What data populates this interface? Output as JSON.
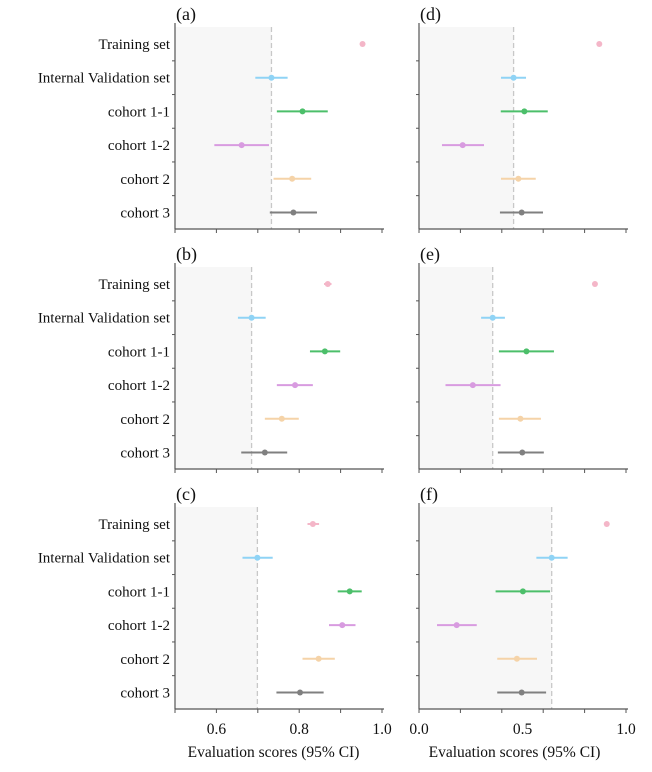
{
  "chart_data": {
    "type": "forest",
    "row_labels": [
      "Training set",
      "Internal Validation set",
      "cohort 1-1",
      "cohort 1-2",
      "cohort 2",
      "cohort 3"
    ],
    "row_colors": [
      "#f4b6c8",
      "#8fd3f5",
      "#4cbf6a",
      "#d89be0",
      "#f5d3a8",
      "#808080"
    ],
    "shade_color": "#f7f7f7",
    "reference_line_color": "#c8c8c8",
    "xlabel": "Evaluation scores (95% CI)",
    "panels": [
      {
        "id": "a",
        "title": "(a)",
        "column": "left",
        "xlim": [
          0.5,
          1.0
        ],
        "xticks": [
          0.5,
          0.6,
          0.7,
          0.8,
          0.9,
          1.0
        ],
        "xticklabels": [],
        "reference": 0.733,
        "points": [
          [
            0.953,
            0.95,
            0.956
          ],
          [
            0.733,
            0.694,
            0.772
          ],
          [
            0.808,
            0.746,
            0.869
          ],
          [
            0.661,
            0.595,
            0.727
          ],
          [
            0.783,
            0.738,
            0.829
          ],
          [
            0.786,
            0.729,
            0.843
          ]
        ]
      },
      {
        "id": "b",
        "title": "(b)",
        "column": "left",
        "xlim": [
          0.5,
          1.0
        ],
        "xticks": [
          0.5,
          0.6,
          0.7,
          0.8,
          0.9,
          1.0
        ],
        "xticklabels": [],
        "reference": 0.685,
        "points": [
          [
            0.869,
            0.86,
            0.878
          ],
          [
            0.685,
            0.652,
            0.719
          ],
          [
            0.862,
            0.826,
            0.899
          ],
          [
            0.79,
            0.746,
            0.833
          ],
          [
            0.758,
            0.717,
            0.799
          ],
          [
            0.717,
            0.66,
            0.771
          ]
        ]
      },
      {
        "id": "c",
        "title": "(c)",
        "column": "left",
        "xlim": [
          0.5,
          1.0
        ],
        "xticks": [
          0.5,
          0.6,
          0.7,
          0.8,
          0.9,
          1.0
        ],
        "xticklabels": [
          "0.6",
          "0.8",
          "1.0"
        ],
        "xticklabel_values": [
          0.6,
          0.8,
          1.0
        ],
        "reference": 0.699,
        "points": [
          [
            0.833,
            0.82,
            0.848
          ],
          [
            0.699,
            0.663,
            0.736
          ],
          [
            0.922,
            0.893,
            0.951
          ],
          [
            0.904,
            0.872,
            0.936
          ],
          [
            0.847,
            0.808,
            0.886
          ],
          [
            0.802,
            0.745,
            0.859
          ]
        ]
      },
      {
        "id": "d",
        "title": "(d)",
        "column": "right",
        "xlim": [
          0.0,
          1.0
        ],
        "xticks": [
          0.0,
          0.2,
          0.4,
          0.6,
          0.8,
          1.0
        ],
        "xticklabels": [],
        "reference": 0.457,
        "points": [
          [
            0.871,
            0.868,
            0.874
          ],
          [
            0.457,
            0.396,
            0.517
          ],
          [
            0.509,
            0.395,
            0.622
          ],
          [
            0.211,
            0.111,
            0.314
          ],
          [
            0.48,
            0.396,
            0.564
          ],
          [
            0.496,
            0.391,
            0.599
          ]
        ]
      },
      {
        "id": "e",
        "title": "(e)",
        "column": "right",
        "xlim": [
          0.0,
          1.0
        ],
        "xticks": [
          0.0,
          0.2,
          0.4,
          0.6,
          0.8,
          1.0
        ],
        "xticklabels": [],
        "reference": 0.356,
        "points": [
          [
            0.85,
            0.843,
            0.857
          ],
          [
            0.356,
            0.3,
            0.415
          ],
          [
            0.519,
            0.386,
            0.652
          ],
          [
            0.26,
            0.128,
            0.394
          ],
          [
            0.49,
            0.386,
            0.589
          ],
          [
            0.499,
            0.381,
            0.603
          ]
        ]
      },
      {
        "id": "f",
        "title": "(f)",
        "column": "right",
        "xlim": [
          0.0,
          1.0
        ],
        "xticks": [
          0.0,
          0.2,
          0.4,
          0.6,
          0.8,
          1.0
        ],
        "xticklabels": [
          "0.0",
          "0.5",
          "1.0"
        ],
        "xticklabel_values": [
          0.0,
          0.5,
          1.0
        ],
        "reference": 0.641,
        "points": [
          [
            0.907,
            0.904,
            0.91
          ],
          [
            0.641,
            0.567,
            0.718
          ],
          [
            0.502,
            0.37,
            0.633
          ],
          [
            0.182,
            0.087,
            0.279
          ],
          [
            0.473,
            0.378,
            0.57
          ],
          [
            0.496,
            0.378,
            0.614
          ]
        ]
      }
    ]
  }
}
